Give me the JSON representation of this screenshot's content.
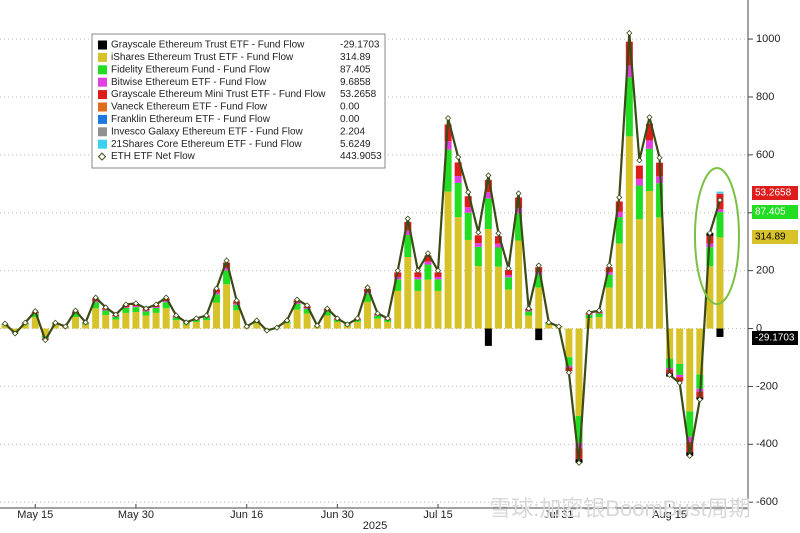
{
  "chart_data": {
    "type": "stacked_bar_line",
    "x_label": "2025",
    "watermark": "雪球:加密银BoomBust周期",
    "categories": [
      null,
      null,
      null,
      "May 15",
      null,
      null,
      null,
      null,
      null,
      null,
      null,
      null,
      null,
      "May 30",
      null,
      null,
      null,
      null,
      null,
      null,
      null,
      null,
      null,
      null,
      "Jun 16",
      null,
      null,
      null,
      null,
      null,
      null,
      null,
      null,
      "Jun 30",
      null,
      null,
      null,
      null,
      null,
      null,
      null,
      null,
      null,
      "Jul 15",
      null,
      null,
      null,
      null,
      null,
      null,
      null,
      null,
      null,
      null,
      null,
      "Jul 31",
      null,
      null,
      null,
      null,
      null,
      null,
      null,
      null,
      null,
      null,
      "Aug 15",
      null,
      null,
      null,
      null,
      null
    ],
    "ylim": [
      -620,
      1135
    ],
    "yticks": [
      -600,
      -400,
      -200,
      0,
      200,
      400,
      600,
      800,
      1000
    ],
    "grid": true,
    "legend": "upper left",
    "legend_values": [
      "-29.1703",
      "314.89",
      "87.405",
      "9.6858",
      "53.2658",
      "0.00",
      "0.00",
      "2.204",
      "5.6249",
      "443.9053"
    ],
    "series": [
      {
        "name": "Grayscale Ethereum Trust ETF - Fund Flow",
        "color": "#000000",
        "values": [
          0,
          0,
          0,
          0,
          0,
          0,
          0,
          0,
          0,
          0,
          0,
          0,
          0,
          0,
          0,
          0,
          0,
          0,
          0,
          0,
          0,
          0,
          0,
          0,
          0,
          0,
          0,
          0,
          0,
          0,
          0,
          0,
          0,
          0,
          0,
          0,
          0,
          0,
          0,
          0,
          0,
          0,
          0,
          0,
          0,
          0,
          0,
          0,
          -60,
          0,
          0,
          0,
          0,
          -40,
          0,
          0,
          0,
          -13,
          0,
          0,
          0,
          0,
          0,
          0,
          0,
          0,
          -11,
          0,
          -13,
          -7,
          10,
          -29.1703
        ]
      },
      {
        "name": "iShares Ethereum Trust ETF - Fund Flow",
        "color": "#d8c22a",
        "values": [
          11,
          -11,
          13,
          39,
          -26,
          13,
          5,
          40,
          14,
          70,
          47,
          31,
          54,
          57,
          45,
          54,
          70,
          29,
          14,
          23,
          29,
          90,
          153,
          63,
          5,
          18,
          -5,
          2,
          18,
          65,
          52,
          7,
          45,
          23,
          9,
          23,
          92,
          34,
          23,
          130,
          247,
          130,
          169,
          130,
          473,
          385,
          306,
          216,
          344,
          214,
          135,
          304,
          45,
          142,
          14,
          5,
          -99,
          -302,
          36,
          40,
          142,
          294,
          664,
          378,
          475,
          384,
          -104,
          -122,
          -286,
          -159,
          215,
          314.89
        ]
      },
      {
        "name": "Fidelity Ethereum Fund - Fund Flow",
        "color": "#22dd22",
        "values": [
          3,
          -3,
          4,
          12,
          -8,
          4,
          1,
          12,
          4,
          21,
          15,
          10,
          17,
          17,
          14,
          17,
          21,
          9,
          4,
          7,
          9,
          28,
          47,
          19,
          1,
          6,
          -1,
          1,
          6,
          20,
          16,
          2,
          14,
          7,
          3,
          7,
          28,
          10,
          7,
          40,
          76,
          40,
          52,
          40,
          145,
          118,
          94,
          66,
          106,
          66,
          42,
          93,
          14,
          44,
          4,
          1,
          -30,
          -93,
          11,
          12,
          44,
          91,
          204,
          116,
          146,
          118,
          -32,
          -38,
          -88,
          -49,
          66,
          87.405
        ]
      },
      {
        "name": "Bitwise Ethereum ETF - Fund Flow",
        "color": "#e040e0",
        "values": [
          1,
          -1,
          1,
          2,
          -2,
          1,
          0,
          2,
          1,
          4,
          3,
          2,
          3,
          3,
          3,
          3,
          4,
          2,
          1,
          1,
          2,
          6,
          9,
          4,
          0,
          1,
          0,
          0,
          1,
          4,
          3,
          0,
          3,
          1,
          1,
          1,
          6,
          2,
          1,
          8,
          15,
          8,
          10,
          8,
          29,
          24,
          19,
          13,
          21,
          13,
          8,
          19,
          3,
          9,
          1,
          0,
          -6,
          -19,
          2,
          2,
          9,
          18,
          41,
          23,
          29,
          24,
          -6,
          -8,
          -18,
          -10,
          13,
          9.6858
        ]
      },
      {
        "name": "Grayscale Ethereum Mini Trust ETF - Fund Flow",
        "color": "#dd1c1c",
        "values": [
          1,
          -1,
          2,
          5,
          -3,
          2,
          1,
          5,
          2,
          9,
          6,
          4,
          7,
          7,
          6,
          7,
          9,
          4,
          2,
          3,
          4,
          11,
          19,
          8,
          1,
          2,
          -1,
          0,
          2,
          8,
          6,
          1,
          6,
          3,
          1,
          3,
          11,
          4,
          3,
          16,
          30,
          16,
          21,
          16,
          58,
          47,
          38,
          27,
          42,
          26,
          17,
          37,
          6,
          17,
          2,
          1,
          -12,
          -37,
          4,
          5,
          17,
          36,
          82,
          46,
          58,
          47,
          -13,
          -15,
          -35,
          -20,
          26,
          53.2658
        ]
      },
      {
        "name": "Vaneck Ethereum ETF - Fund Flow",
        "color": "#e06a1c",
        "values": [
          0,
          0,
          0,
          0,
          0,
          0,
          0,
          0,
          0,
          0,
          0,
          0,
          0,
          0,
          0,
          0,
          0,
          0,
          0,
          0,
          0,
          0,
          0,
          0,
          0,
          0,
          0,
          0,
          0,
          0,
          0,
          0,
          0,
          0,
          0,
          0,
          0,
          0,
          0,
          0,
          0,
          0,
          0,
          0,
          0,
          0,
          0,
          0,
          0,
          0,
          0,
          0,
          0,
          0,
          0,
          0,
          0,
          0,
          0,
          0,
          0,
          0,
          0,
          0,
          0,
          0,
          0,
          0,
          0,
          0,
          0,
          0
        ]
      },
      {
        "name": "Franklin Ethereum ETF - Fund Flow",
        "color": "#1e78e0",
        "values": [
          0,
          0,
          0,
          0,
          0,
          0,
          0,
          0,
          0,
          0,
          0,
          0,
          0,
          0,
          0,
          0,
          0,
          0,
          0,
          0,
          0,
          0,
          0,
          0,
          0,
          0,
          0,
          0,
          0,
          0,
          0,
          0,
          0,
          0,
          0,
          0,
          0,
          0,
          0,
          0,
          0,
          0,
          0,
          0,
          0,
          0,
          0,
          0,
          0,
          0,
          0,
          0,
          0,
          0,
          0,
          0,
          0,
          0,
          0,
          0,
          0,
          0,
          0,
          0,
          0,
          0,
          0,
          0,
          0,
          0,
          0,
          0
        ]
      },
      {
        "name": "Invesco Galaxy Ethereum ETF - Fund Flow",
        "color": "#909090",
        "values": [
          0,
          0,
          0,
          0,
          0,
          0,
          0,
          0,
          0,
          0,
          0,
          0,
          0,
          0,
          0,
          0,
          0,
          0,
          0,
          0,
          0,
          0,
          0,
          0,
          0,
          0,
          0,
          0,
          0,
          0,
          0,
          0,
          0,
          0,
          0,
          0,
          0,
          0,
          0,
          0,
          0,
          0,
          0,
          0,
          0,
          0,
          0,
          0,
          0,
          0,
          0,
          0,
          0,
          0,
          0,
          0,
          0,
          0,
          0,
          0,
          0,
          0,
          0,
          0,
          0,
          0,
          0,
          0,
          0,
          0,
          0,
          2.204
        ]
      },
      {
        "name": "21Shares Core Ethereum ETF - Fund Flow",
        "color": "#3ad0f0",
        "values": [
          0,
          0,
          0,
          0,
          0,
          0,
          0,
          0,
          0,
          0,
          0,
          0,
          0,
          0,
          0,
          0,
          0,
          0,
          0,
          0,
          0,
          0,
          0,
          0,
          0,
          0,
          0,
          0,
          0,
          0,
          0,
          0,
          0,
          0,
          0,
          0,
          0,
          0,
          0,
          0,
          0,
          0,
          0,
          0,
          0,
          0,
          0,
          0,
          0,
          0,
          0,
          0,
          0,
          0,
          0,
          0,
          0,
          0,
          0,
          0,
          0,
          0,
          0,
          0,
          0,
          0,
          0,
          0,
          0,
          0,
          0,
          5.6249
        ]
      }
    ],
    "line_series": {
      "name": "ETH ETF Net Flow",
      "color": "#3b4a16",
      "values": [
        17,
        -17,
        20,
        60,
        -40,
        20,
        7,
        62,
        21,
        107,
        73,
        48,
        83,
        87,
        69,
        83,
        107,
        45,
        21,
        35,
        45,
        138,
        235,
        97,
        7,
        28,
        -7,
        3,
        28,
        100,
        80,
        10,
        69,
        35,
        14,
        35,
        142,
        52,
        35,
        200,
        380,
        200,
        260,
        200,
        727,
        592,
        471,
        332,
        529,
        329,
        208,
        467,
        69,
        218,
        21,
        7,
        -152,
        -464,
        55,
        62,
        218,
        453,
        1021,
        581,
        730,
        590,
        -160,
        -188,
        -440,
        -245,
        330,
        443.9053
      ]
    }
  }
}
